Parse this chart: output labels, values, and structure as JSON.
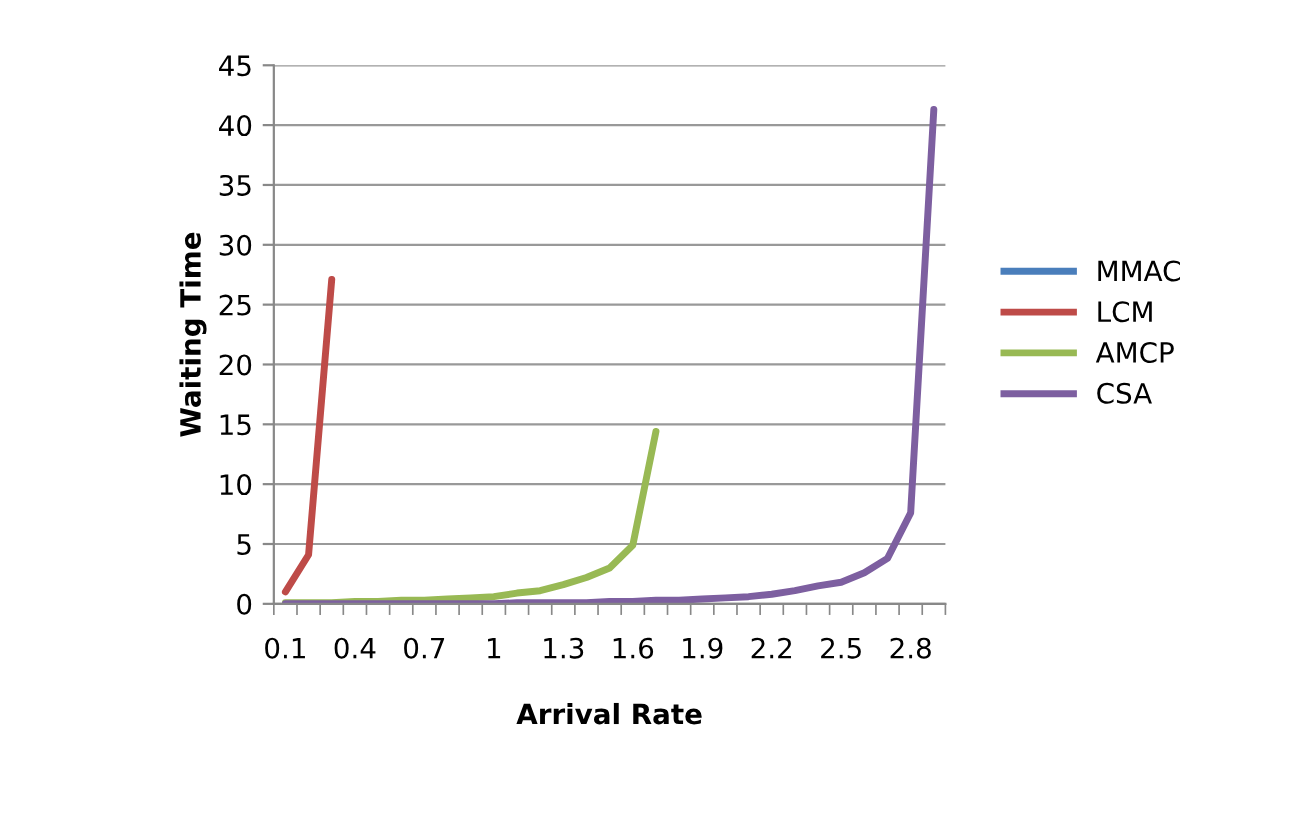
{
  "chart_data": {
    "type": "line",
    "xlabel": "Arrival Rate",
    "ylabel": "Waiting Time",
    "categories": [
      "0.1",
      null,
      null,
      "0.4",
      null,
      null,
      "0.7",
      null,
      null,
      "1",
      null,
      null,
      "1.3",
      null,
      null,
      "1.6",
      null,
      null,
      "1.9",
      null,
      null,
      "2.2",
      null,
      null,
      "2.5",
      null,
      null,
      "2.8",
      null
    ],
    "series": [
      {
        "name": "MMAC",
        "color": "#4a7ebb",
        "values": [
          null,
          null,
          null,
          null,
          null,
          null,
          null,
          null,
          null,
          null,
          null,
          null,
          null,
          null,
          null,
          null,
          null,
          null,
          null,
          null,
          null,
          null,
          null,
          null,
          null,
          null,
          null,
          null,
          null
        ]
      },
      {
        "name": "LCM",
        "color": "#be4b48",
        "values": [
          1.0,
          4.1,
          27.1,
          null,
          null,
          null,
          null,
          null,
          null,
          null,
          null,
          null,
          null,
          null,
          null,
          null,
          null,
          null,
          null,
          null,
          null,
          null,
          null,
          null,
          null,
          null,
          null,
          null,
          null
        ]
      },
      {
        "name": "AMCP",
        "color": "#98b954",
        "values": [
          0.1,
          0.1,
          0.1,
          0.2,
          0.2,
          0.3,
          0.3,
          0.4,
          0.5,
          0.6,
          0.9,
          1.1,
          1.6,
          2.2,
          3.0,
          4.9,
          14.4,
          null,
          null,
          null,
          null,
          null,
          null,
          null,
          null,
          null,
          null,
          null,
          null
        ]
      },
      {
        "name": "CSA",
        "color": "#7d5fa0",
        "values": [
          0,
          0,
          0,
          0,
          0,
          0,
          0,
          0,
          0,
          0,
          0.1,
          0.1,
          0.1,
          0.1,
          0.2,
          0.2,
          0.3,
          0.3,
          0.4,
          0.5,
          0.6,
          0.8,
          1.1,
          1.5,
          1.8,
          2.6,
          3.8,
          7.6,
          41.3
        ]
      }
    ],
    "ylim": [
      0,
      45
    ],
    "yticks": [
      0,
      5,
      10,
      15,
      20,
      25,
      30,
      35,
      40,
      45
    ],
    "grid": "y",
    "legend": "right"
  }
}
